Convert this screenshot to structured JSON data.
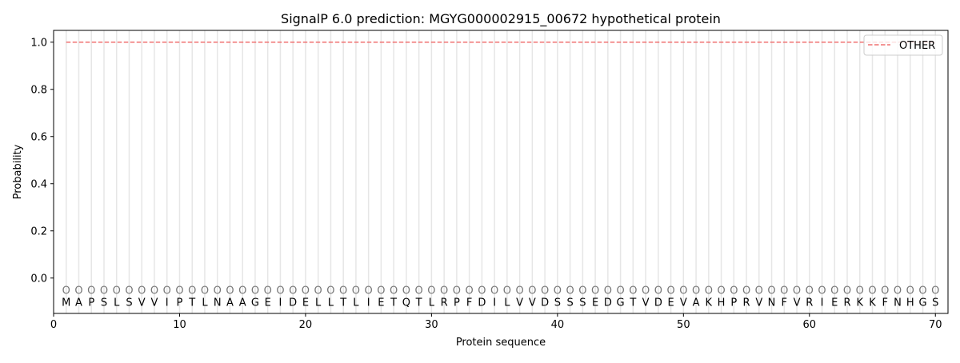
{
  "chart_data": {
    "type": "line",
    "title": "SignalP 6.0 prediction: MGYG000002915_00672 hypothetical protein",
    "xlabel": "Protein sequence",
    "ylabel": "Probability",
    "xlim": [
      0,
      71
    ],
    "ylim": [
      -0.15,
      1.05
    ],
    "xticks": [
      0,
      10,
      20,
      30,
      40,
      50,
      60,
      70
    ],
    "yticks": [
      0.0,
      0.2,
      0.4,
      0.6,
      0.8,
      1.0
    ],
    "ytick_labels": [
      "0.0",
      "0.2",
      "0.4",
      "0.6",
      "0.8",
      "1.0"
    ],
    "grid": "vertical lines at each residue",
    "legend_position": "top-right",
    "sequence": [
      "M",
      "A",
      "P",
      "S",
      "L",
      "S",
      "V",
      "V",
      "I",
      "P",
      "T",
      "L",
      "N",
      "A",
      "A",
      "G",
      "E",
      "I",
      "D",
      "E",
      "L",
      "L",
      "T",
      "L",
      "I",
      "E",
      "T",
      "Q",
      "T",
      "L",
      "R",
      "P",
      "F",
      "D",
      "I",
      "L",
      "V",
      "V",
      "D",
      "S",
      "S",
      "S",
      "E",
      "D",
      "G",
      "T",
      "V",
      "D",
      "E",
      "V",
      "A",
      "K",
      "H",
      "P",
      "R",
      "V",
      "N",
      "F",
      "V",
      "R",
      "I",
      "E",
      "R",
      "K",
      "K",
      "F",
      "N",
      "H",
      "G",
      "S"
    ],
    "label_marker": "O",
    "series": [
      {
        "name": "OTHER",
        "color": "#f07070",
        "style": "dashed",
        "x_range": [
          1,
          70
        ],
        "value": 1.0
      }
    ]
  }
}
